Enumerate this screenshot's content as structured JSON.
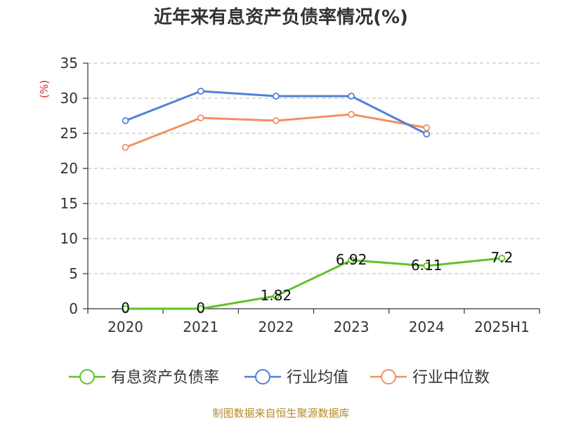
{
  "title": "近年来有息资产负债率情况(%)",
  "source": "制图数据来自恒生聚源数据库",
  "chart_data": {
    "type": "line",
    "title": "近年来有息资产负债率情况(%)",
    "ylabel": "(%)",
    "xlabel": "",
    "categories": [
      "2020",
      "2021",
      "2022",
      "2023",
      "2024",
      "2025H1"
    ],
    "ylim": [
      0,
      35
    ],
    "yticks": [
      0,
      5,
      10,
      15,
      20,
      25,
      30,
      35
    ],
    "grid": true,
    "legend_position": "bottom",
    "series": [
      {
        "name": "有息资产负债率",
        "color": "#5fc226",
        "values": [
          0,
          0,
          1.82,
          6.92,
          6.11,
          7.2
        ],
        "data_labels": [
          "0",
          "0",
          "1.82",
          "6.92",
          "6.11",
          "7.2"
        ]
      },
      {
        "name": "行业均值",
        "color": "#4f81d9",
        "values": [
          26.8,
          31.0,
          30.3,
          30.3,
          24.9,
          null
        ]
      },
      {
        "name": "行业中位数",
        "color": "#f39060",
        "values": [
          23.0,
          27.2,
          26.8,
          27.7,
          25.8,
          null
        ]
      }
    ]
  }
}
